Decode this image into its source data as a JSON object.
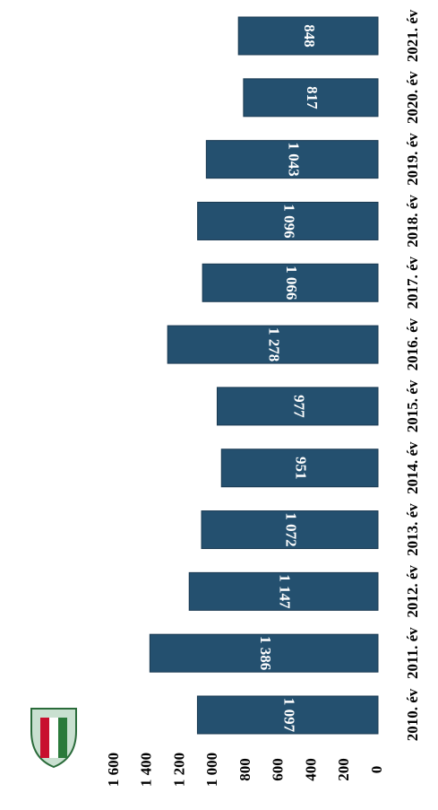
{
  "chart_data": {
    "type": "bar",
    "orientation": "horizontal",
    "categories": [
      "2010. év",
      "2011. év",
      "2012. év",
      "2013. év",
      "2014. év",
      "2015. év",
      "2016. év",
      "2017. év",
      "2018. év",
      "2019. év",
      "2020. év",
      "2021. év"
    ],
    "values": [
      1097,
      1386,
      1147,
      1072,
      951,
      977,
      1278,
      1066,
      1096,
      1043,
      817,
      848
    ],
    "value_labels": [
      "1 097",
      "1 386",
      "1 147",
      "1 072",
      "951",
      "977",
      "1 278",
      "1 066",
      "1 096",
      "1 043",
      "817",
      "848"
    ],
    "color": "#24506f",
    "ylim": [
      0,
      1600
    ],
    "yticks": [
      0,
      200,
      400,
      600,
      800,
      {
        "value": 1000,
        "label": "1 000"
      },
      {
        "value": 1200,
        "label": "1 200"
      },
      {
        "value": 1400,
        "label": "1 400"
      },
      {
        "value": 1600,
        "label": "1 600"
      }
    ]
  }
}
